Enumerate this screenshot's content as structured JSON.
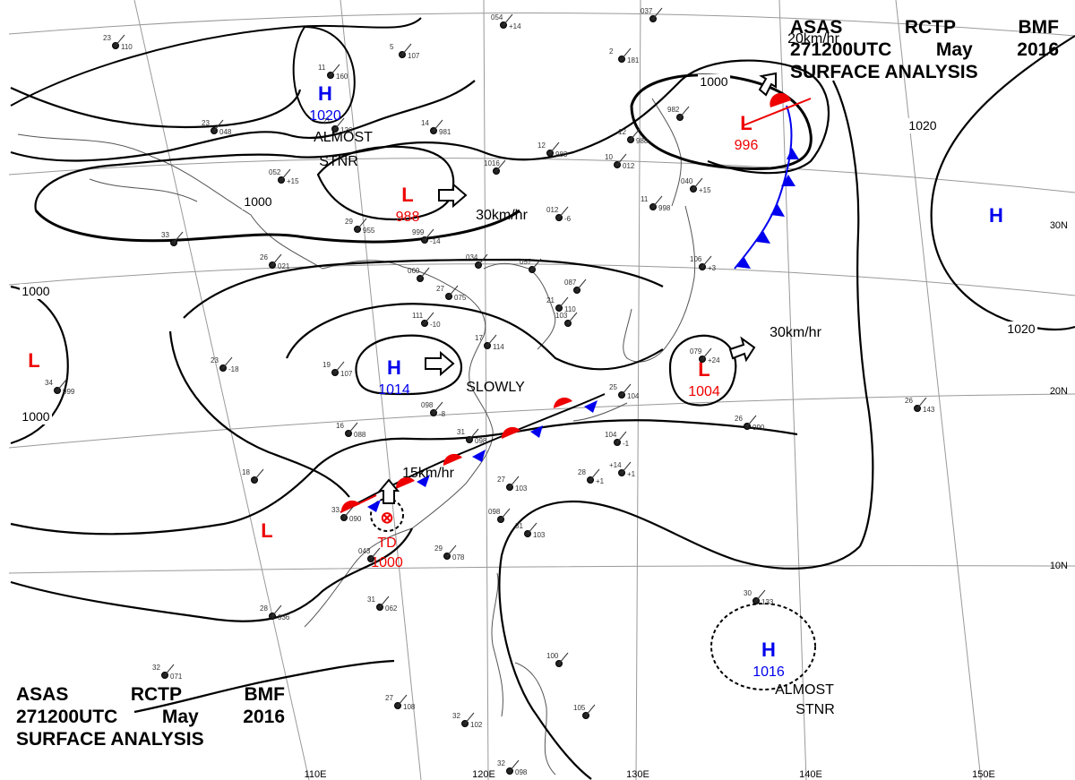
{
  "header": {
    "line1": [
      "ASAS",
      "RCTP",
      "BMF"
    ],
    "line2": [
      "271200UTC",
      "May",
      "2016"
    ],
    "line3": "SURFACE ANALYSIS"
  },
  "colors": {
    "high": "#0000ee",
    "low": "#ee0000",
    "isobar": "#000000",
    "coast": "#666666",
    "grid": "#999999"
  },
  "pressure_centers": [
    {
      "type": "H",
      "value": "1020"
    },
    {
      "type": "L",
      "value": "988"
    },
    {
      "type": "L",
      "value": "996"
    },
    {
      "type": "H",
      "value": ""
    },
    {
      "type": "L",
      "value": ""
    },
    {
      "type": "H",
      "value": "1014"
    },
    {
      "type": "L",
      "value": "1004"
    },
    {
      "type": "L",
      "value": ""
    },
    {
      "type": "H",
      "value": "1016"
    }
  ],
  "tropical_depression": {
    "label": "TD",
    "value": "1000"
  },
  "isobar_labels": [
    "1000",
    "1000",
    "1000",
    "1000",
    "1020",
    "1020"
  ],
  "motion_labels": [
    "ALMOST",
    "STNR",
    "30km/hr",
    "30km/hr",
    "SLOWLY",
    "15km/hr",
    "ALMOST",
    "STNR",
    "20km/hr"
  ],
  "lat_labels": [
    "30N",
    "20N",
    "10N"
  ],
  "lon_labels": [
    "110E",
    "120E",
    "130E",
    "140E",
    "150E"
  ],
  "stations": [
    [
      "23",
      "110"
    ],
    [
      "11",
      "160"
    ],
    [
      "5",
      "107"
    ],
    [
      "054",
      "+14"
    ],
    [
      "037",
      ""
    ],
    [
      "2",
      "181"
    ],
    [
      "23",
      "048"
    ],
    [
      "21",
      "126"
    ],
    [
      "14",
      "981"
    ],
    [
      "12",
      "983"
    ],
    [
      "12",
      "988"
    ],
    [
      "982",
      ""
    ],
    [
      "052",
      "+15"
    ],
    [
      "10",
      "012"
    ],
    [
      "1016",
      ""
    ],
    [
      "29",
      "955"
    ],
    [
      "999",
      "-14"
    ],
    [
      "012",
      "-6"
    ],
    [
      "11",
      "998"
    ],
    [
      "040",
      "+15"
    ],
    [
      "26",
      "021"
    ],
    [
      "33",
      ""
    ],
    [
      "034",
      ""
    ],
    [
      "057",
      ""
    ],
    [
      "060",
      ""
    ],
    [
      "27",
      "075"
    ],
    [
      "087",
      ""
    ],
    [
      "21",
      "110"
    ],
    [
      "106",
      "+3"
    ],
    [
      "111",
      "-10"
    ],
    [
      "103",
      ""
    ],
    [
      "17",
      "114"
    ],
    [
      "23",
      "-18"
    ],
    [
      "19",
      "107"
    ],
    [
      "34",
      "999"
    ],
    [
      "098",
      "-8"
    ],
    [
      "16",
      "088"
    ],
    [
      "31",
      "098"
    ],
    [
      "25",
      "104"
    ],
    [
      "104",
      "-1"
    ],
    [
      "26",
      "090"
    ],
    [
      "26",
      "143"
    ],
    [
      "079",
      "+24"
    ],
    [
      "18",
      ""
    ],
    [
      "33",
      "090"
    ],
    [
      "27",
      "103"
    ],
    [
      "098",
      ""
    ],
    [
      "31",
      "103"
    ],
    [
      "29",
      "078"
    ],
    [
      "043",
      ""
    ],
    [
      "28",
      "036"
    ],
    [
      "31",
      "062"
    ],
    [
      "30",
      "133"
    ],
    [
      "100",
      ""
    ],
    [
      "32",
      "071"
    ],
    [
      "27",
      "108"
    ],
    [
      "32",
      "102"
    ],
    [
      "105",
      ""
    ],
    [
      "32",
      "098"
    ],
    [
      "28",
      "+1"
    ],
    [
      "+14",
      "+1"
    ]
  ]
}
